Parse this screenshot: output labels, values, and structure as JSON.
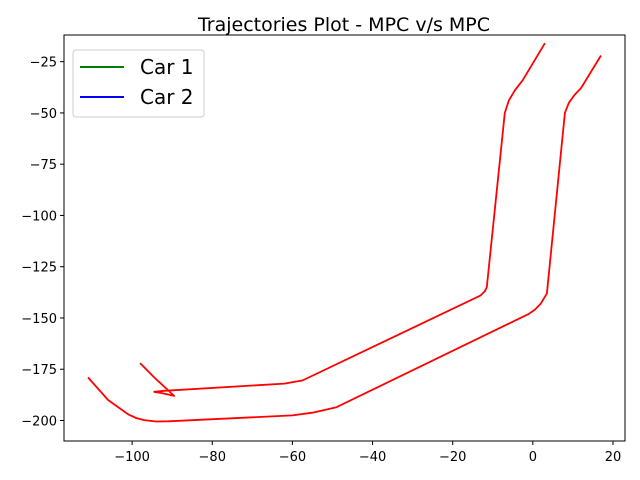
{
  "chart_data": {
    "type": "line",
    "title": "Trajectories Plot - MPC v/s MPC",
    "xlabel": "",
    "ylabel": "",
    "xlim": [
      -117,
      23
    ],
    "ylim": [
      -210,
      -12
    ],
    "x_ticks": [
      -100,
      -80,
      -60,
      -40,
      -20,
      0,
      20
    ],
    "y_ticks": [
      -25,
      -50,
      -75,
      -100,
      -125,
      -150,
      -175,
      -200
    ],
    "x_tick_labels": [
      "−100",
      "−80",
      "−60",
      "−40",
      "−20",
      "0",
      "20"
    ],
    "y_tick_labels": [
      "−25",
      "−50",
      "−75",
      "−100",
      "−125",
      "−150",
      "−175",
      "−200"
    ],
    "grid": false,
    "legend": {
      "position": "top-left",
      "entries": [
        {
          "label": "Car 1",
          "color": "#008000"
        },
        {
          "label": "Car 2",
          "color": "#0000ff"
        }
      ]
    },
    "series": [
      {
        "color": "#ff0000",
        "points": [
          [
            -98,
            -172
          ],
          [
            -94.5,
            -179
          ],
          [
            -89.5,
            -188
          ],
          [
            -93,
            -186.5
          ],
          [
            -94.5,
            -186
          ],
          [
            -92,
            -185.5
          ],
          [
            -62,
            -182
          ],
          [
            -59,
            -181
          ],
          [
            -57.5,
            -180.5
          ],
          [
            -13,
            -139
          ],
          [
            -12,
            -137
          ],
          [
            -11.5,
            -135
          ],
          [
            -7,
            -50
          ],
          [
            -6,
            -44
          ],
          [
            -4.5,
            -39
          ],
          [
            -2.5,
            -34
          ],
          [
            3,
            -16
          ]
        ]
      },
      {
        "color": "#ff0000",
        "points": [
          [
            -111,
            -179
          ],
          [
            -106,
            -190
          ],
          [
            -101,
            -197
          ],
          [
            -99,
            -198.8
          ],
          [
            -97,
            -199.8
          ],
          [
            -94,
            -200.5
          ],
          [
            -91,
            -200.4
          ],
          [
            -60,
            -197.5
          ],
          [
            -55,
            -196.2
          ],
          [
            -49,
            -193.5
          ],
          [
            -1,
            -148
          ],
          [
            0.5,
            -146
          ],
          [
            2,
            -143
          ],
          [
            3.5,
            -138
          ],
          [
            8,
            -50
          ],
          [
            9,
            -45
          ],
          [
            10.5,
            -41
          ],
          [
            12,
            -38
          ],
          [
            17,
            -22
          ]
        ]
      }
    ]
  }
}
